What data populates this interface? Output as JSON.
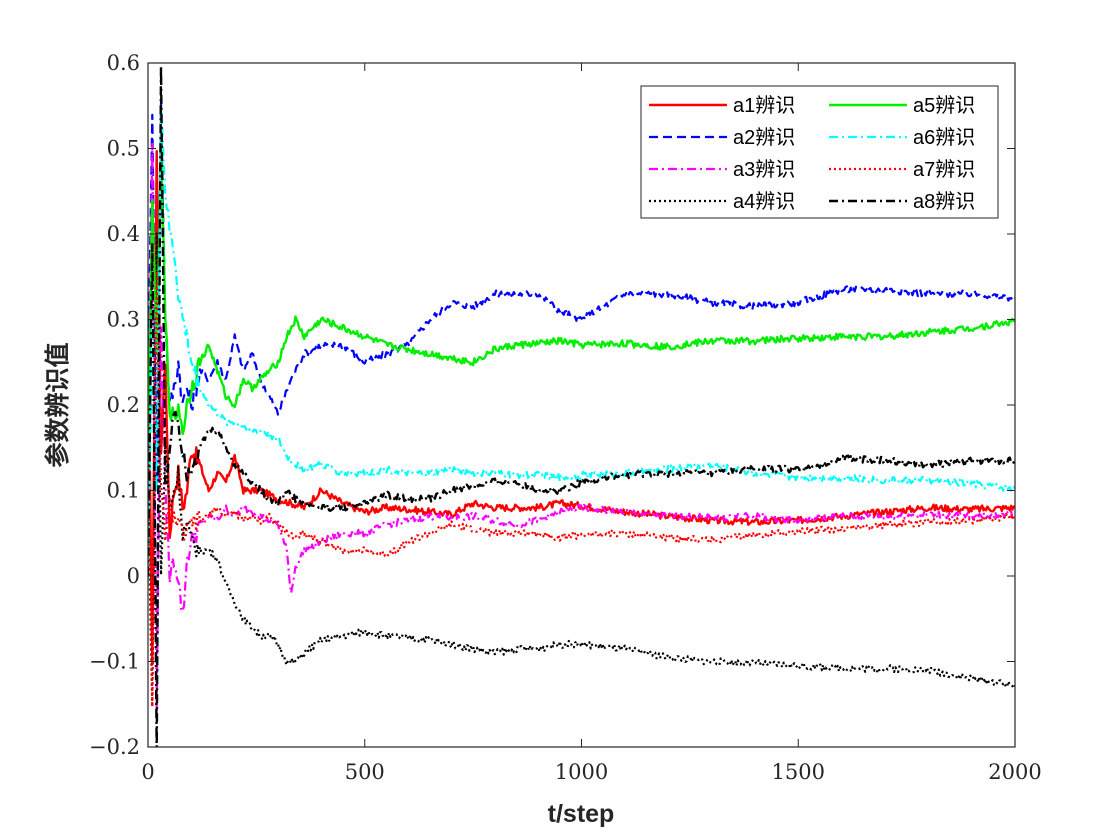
{
  "chart_data": {
    "type": "line",
    "title": "",
    "xlabel": "t/step",
    "ylabel": "参数辨识值",
    "xlim": [
      0,
      2000
    ],
    "ylim": [
      -0.2,
      0.6
    ],
    "xticks": [
      0,
      500,
      1000,
      1500,
      2000
    ],
    "yticks": [
      -0.2,
      -0.1,
      0,
      0.1,
      0.2,
      0.3,
      0.4,
      0.5,
      0.6
    ],
    "ytick_labels": [
      "−0.2",
      "−0.1",
      "0",
      "0.1",
      "0.2",
      "0.3",
      "0.4",
      "0.5",
      "0.6"
    ],
    "grid": false,
    "legend_position": "top-right",
    "series": [
      {
        "name": "a1辨识",
        "color": "#ff0000",
        "dash": "solid",
        "width": 2.4,
        "x": [
          0,
          10,
          20,
          30,
          40,
          50,
          60,
          70,
          80,
          90,
          100,
          120,
          140,
          160,
          180,
          200,
          220,
          240,
          260,
          280,
          300,
          330,
          360,
          400,
          450,
          500,
          550,
          600,
          650,
          700,
          750,
          800,
          850,
          900,
          950,
          1000,
          1100,
          1200,
          1300,
          1400,
          1500,
          1600,
          1700,
          1800,
          1900,
          2000
        ],
        "y": [
          0.3,
          -0.1,
          0.5,
          0.15,
          0.25,
          0.05,
          0.1,
          0.12,
          0.08,
          0.1,
          0.15,
          0.13,
          0.1,
          0.12,
          0.11,
          0.14,
          0.1,
          0.1,
          0.1,
          0.095,
          0.09,
          0.085,
          0.08,
          0.1,
          0.085,
          0.075,
          0.08,
          0.078,
          0.075,
          0.072,
          0.085,
          0.08,
          0.08,
          0.08,
          0.085,
          0.082,
          0.075,
          0.07,
          0.065,
          0.063,
          0.065,
          0.07,
          0.075,
          0.08,
          0.078,
          0.08
        ]
      },
      {
        "name": "a2辨识",
        "color": "#0000ff",
        "dash": "dash",
        "width": 2.2,
        "x": [
          0,
          10,
          20,
          30,
          40,
          50,
          60,
          70,
          80,
          90,
          100,
          120,
          140,
          160,
          180,
          200,
          220,
          240,
          260,
          280,
          300,
          330,
          360,
          400,
          450,
          500,
          550,
          600,
          650,
          700,
          750,
          800,
          850,
          900,
          950,
          1000,
          1100,
          1200,
          1300,
          1400,
          1500,
          1600,
          1700,
          1800,
          1900,
          2000
        ],
        "y": [
          0.2,
          0.55,
          0.1,
          0.55,
          0.3,
          0.2,
          0.22,
          0.25,
          0.2,
          0.22,
          0.2,
          0.24,
          0.23,
          0.25,
          0.23,
          0.28,
          0.24,
          0.26,
          0.23,
          0.21,
          0.19,
          0.23,
          0.26,
          0.27,
          0.27,
          0.25,
          0.26,
          0.27,
          0.3,
          0.32,
          0.315,
          0.33,
          0.33,
          0.33,
          0.31,
          0.3,
          0.33,
          0.33,
          0.32,
          0.315,
          0.32,
          0.335,
          0.335,
          0.33,
          0.33,
          0.325
        ]
      },
      {
        "name": "a3辨识",
        "color": "#ff00ff",
        "dash": "dashdot",
        "width": 2.2,
        "x": [
          0,
          10,
          20,
          30,
          40,
          50,
          60,
          70,
          80,
          90,
          100,
          120,
          140,
          160,
          180,
          200,
          220,
          240,
          260,
          280,
          300,
          320,
          330,
          340,
          360,
          400,
          450,
          500,
          550,
          600,
          650,
          700,
          750,
          800,
          850,
          900,
          950,
          1000,
          1100,
          1200,
          1300,
          1400,
          1500,
          1600,
          1700,
          1800,
          1900,
          2000
        ],
        "y": [
          0.15,
          0.5,
          -0.15,
          0.3,
          0.1,
          0.0,
          0.02,
          0.0,
          -0.05,
          0.02,
          0.04,
          0.06,
          0.07,
          0.065,
          0.08,
          0.07,
          0.08,
          0.075,
          0.07,
          0.065,
          0.06,
          0.03,
          -0.02,
          0.01,
          0.03,
          0.04,
          0.05,
          0.05,
          0.06,
          0.065,
          0.07,
          0.068,
          0.07,
          0.065,
          0.06,
          0.065,
          0.075,
          0.08,
          0.075,
          0.07,
          0.068,
          0.07,
          0.065,
          0.07,
          0.07,
          0.072,
          0.07,
          0.072
        ]
      },
      {
        "name": "a4辨识",
        "color": "#000000",
        "dash": "dot",
        "width": 2.2,
        "x": [
          0,
          10,
          20,
          30,
          40,
          50,
          60,
          70,
          80,
          90,
          100,
          120,
          140,
          160,
          180,
          200,
          220,
          240,
          260,
          280,
          300,
          320,
          340,
          360,
          400,
          450,
          500,
          550,
          600,
          650,
          700,
          750,
          800,
          850,
          900,
          950,
          1000,
          1100,
          1200,
          1300,
          1400,
          1500,
          1600,
          1700,
          1800,
          1900,
          2000
        ],
        "y": [
          0.1,
          -0.15,
          0.4,
          0.0,
          0.15,
          0.08,
          0.1,
          0.12,
          0.05,
          0.06,
          0.04,
          0.03,
          0.03,
          0.02,
          -0.01,
          -0.03,
          -0.05,
          -0.06,
          -0.07,
          -0.07,
          -0.08,
          -0.1,
          -0.1,
          -0.09,
          -0.075,
          -0.07,
          -0.065,
          -0.07,
          -0.072,
          -0.075,
          -0.08,
          -0.085,
          -0.09,
          -0.085,
          -0.085,
          -0.08,
          -0.08,
          -0.085,
          -0.095,
          -0.1,
          -0.102,
          -0.105,
          -0.108,
          -0.108,
          -0.11,
          -0.12,
          -0.128
        ]
      },
      {
        "name": "a5辨识",
        "color": "#00ee00",
        "dash": "solid",
        "width": 2.4,
        "x": [
          0,
          10,
          20,
          30,
          40,
          50,
          60,
          70,
          80,
          90,
          100,
          120,
          140,
          160,
          180,
          200,
          220,
          240,
          260,
          280,
          300,
          320,
          340,
          360,
          380,
          400,
          450,
          500,
          550,
          600,
          650,
          700,
          750,
          800,
          850,
          900,
          950,
          1000,
          1100,
          1200,
          1300,
          1400,
          1500,
          1600,
          1700,
          1800,
          1900,
          2000
        ],
        "y": [
          0.1,
          0.45,
          0.25,
          0.5,
          0.3,
          0.2,
          0.18,
          0.2,
          0.17,
          0.2,
          0.22,
          0.25,
          0.27,
          0.24,
          0.21,
          0.2,
          0.23,
          0.22,
          0.23,
          0.24,
          0.25,
          0.28,
          0.3,
          0.28,
          0.29,
          0.3,
          0.29,
          0.28,
          0.27,
          0.265,
          0.26,
          0.255,
          0.25,
          0.265,
          0.27,
          0.272,
          0.275,
          0.27,
          0.272,
          0.268,
          0.275,
          0.275,
          0.278,
          0.28,
          0.28,
          0.285,
          0.29,
          0.298
        ]
      },
      {
        "name": "a6辨识",
        "color": "#00ffff",
        "dash": "dashdot",
        "width": 2.2,
        "x": [
          0,
          10,
          20,
          30,
          40,
          50,
          60,
          70,
          80,
          90,
          100,
          120,
          140,
          160,
          180,
          200,
          220,
          240,
          260,
          280,
          300,
          320,
          340,
          360,
          400,
          450,
          500,
          550,
          600,
          650,
          700,
          750,
          800,
          850,
          900,
          950,
          1000,
          1100,
          1200,
          1300,
          1400,
          1500,
          1600,
          1700,
          1800,
          1900,
          2000
        ],
        "y": [
          0.0,
          0.3,
          0.1,
          0.55,
          0.45,
          0.4,
          0.38,
          0.33,
          0.3,
          0.28,
          0.25,
          0.22,
          0.2,
          0.19,
          0.18,
          0.18,
          0.175,
          0.17,
          0.17,
          0.165,
          0.16,
          0.14,
          0.13,
          0.125,
          0.13,
          0.12,
          0.12,
          0.125,
          0.12,
          0.12,
          0.125,
          0.12,
          0.12,
          0.118,
          0.118,
          0.115,
          0.118,
          0.12,
          0.125,
          0.13,
          0.12,
          0.115,
          0.115,
          0.112,
          0.112,
          0.108,
          0.102
        ]
      },
      {
        "name": "a7辨识",
        "color": "#ff0000",
        "dash": "dot",
        "width": 2.2,
        "x": [
          0,
          10,
          20,
          30,
          40,
          50,
          60,
          70,
          80,
          90,
          100,
          120,
          140,
          160,
          180,
          200,
          220,
          240,
          260,
          280,
          300,
          320,
          340,
          360,
          400,
          450,
          500,
          550,
          600,
          650,
          700,
          750,
          800,
          850,
          900,
          950,
          1000,
          1100,
          1200,
          1300,
          1400,
          1500,
          1600,
          1700,
          1800,
          1900,
          2000
        ],
        "y": [
          0.2,
          -0.15,
          0.35,
          0.1,
          0.05,
          0.08,
          0.07,
          0.06,
          0.05,
          0.05,
          0.06,
          0.065,
          0.07,
          0.08,
          0.07,
          0.075,
          0.065,
          0.07,
          0.065,
          0.07,
          0.06,
          0.05,
          0.045,
          0.05,
          0.04,
          0.03,
          0.03,
          0.025,
          0.04,
          0.05,
          0.06,
          0.055,
          0.05,
          0.05,
          0.05,
          0.045,
          0.048,
          0.05,
          0.045,
          0.042,
          0.048,
          0.052,
          0.055,
          0.06,
          0.063,
          0.065,
          0.07
        ]
      },
      {
        "name": "a8辨识",
        "color": "#000000",
        "dash": "dashdot",
        "width": 2.4,
        "x": [
          0,
          10,
          20,
          30,
          40,
          50,
          60,
          70,
          80,
          90,
          100,
          120,
          140,
          160,
          180,
          200,
          220,
          240,
          260,
          280,
          300,
          320,
          340,
          360,
          400,
          450,
          500,
          550,
          600,
          650,
          700,
          750,
          800,
          850,
          900,
          950,
          1000,
          1100,
          1200,
          1300,
          1400,
          1500,
          1550,
          1600,
          1700,
          1800,
          1900,
          2000
        ],
        "y": [
          0.0,
          0.4,
          -0.2,
          0.6,
          0.1,
          0.15,
          0.2,
          0.18,
          0.15,
          0.12,
          0.13,
          0.15,
          0.17,
          0.17,
          0.15,
          0.13,
          0.12,
          0.11,
          0.1,
          0.09,
          0.085,
          0.1,
          0.09,
          0.085,
          0.08,
          0.08,
          0.085,
          0.095,
          0.09,
          0.09,
          0.1,
          0.105,
          0.11,
          0.11,
          0.1,
          0.1,
          0.11,
          0.118,
          0.12,
          0.12,
          0.125,
          0.125,
          0.128,
          0.138,
          0.135,
          0.13,
          0.135,
          0.135
        ]
      }
    ]
  }
}
